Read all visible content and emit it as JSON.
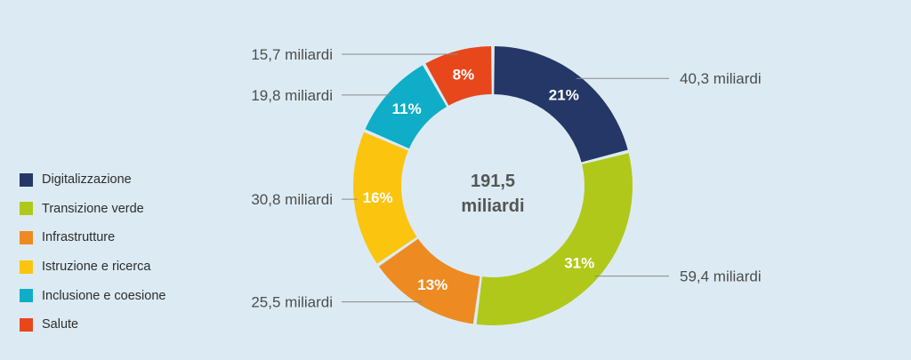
{
  "chart_data": {
    "type": "pie",
    "style": "donut",
    "total_label": [
      "191,5",
      "miliardi"
    ],
    "legend_position": "left",
    "categories": [
      "Digitalizzazione",
      "Transizione verde",
      "Infrastrutture",
      "Istruzione e ricerca",
      "Inclusione e coesione",
      "Salute"
    ],
    "values": [
      40.3,
      59.4,
      25.5,
      30.8,
      19.8,
      15.7
    ],
    "percent_labels": [
      "21%",
      "31%",
      "13%",
      "16%",
      "11%",
      "8%"
    ],
    "value_labels": [
      "40,3 miliardi",
      "59,4 miliardi",
      "25,5 miliardi",
      "30,8 miliardi",
      "19,8 miliardi",
      "15,7 miliardi"
    ],
    "colors": [
      "#253766",
      "#b0c819",
      "#ee8a22",
      "#fbc40f",
      "#0fadc8",
      "#e8471c"
    ]
  }
}
